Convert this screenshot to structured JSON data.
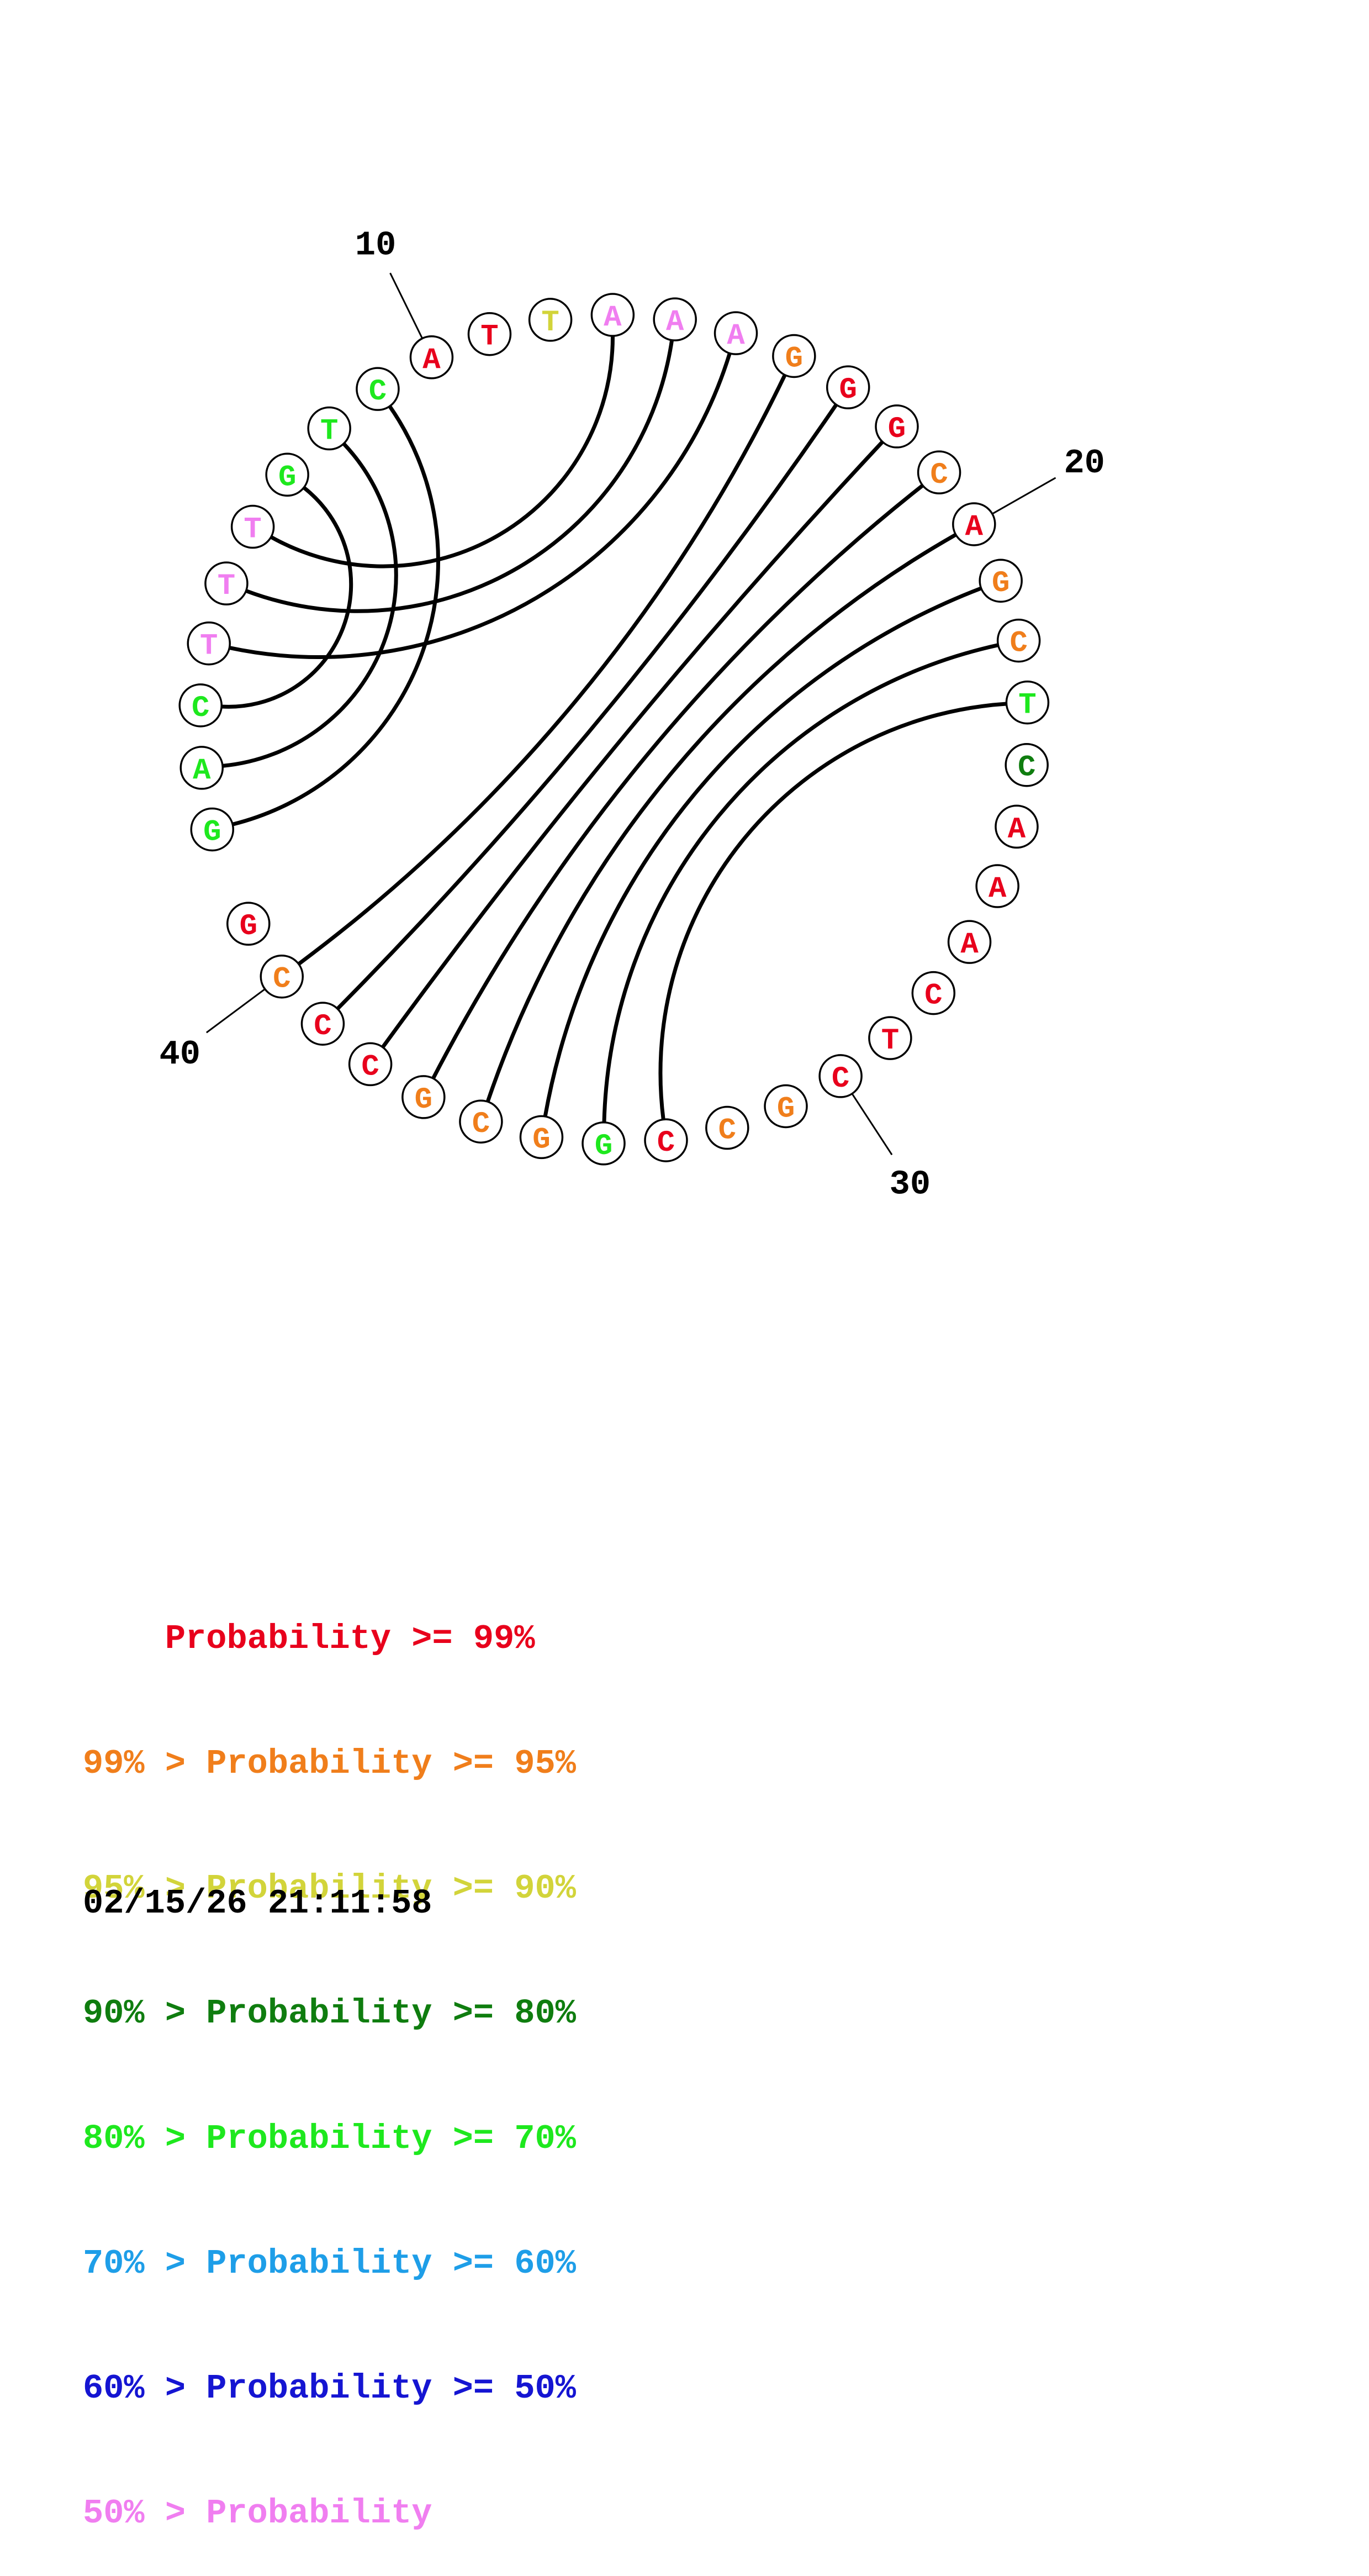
{
  "diagram": {
    "sequence": [
      {
        "nt": "G",
        "prob": "80"
      },
      {
        "nt": "A",
        "prob": "80"
      },
      {
        "nt": "C",
        "prob": "80"
      },
      {
        "nt": "T",
        "prob": "50"
      },
      {
        "nt": "T",
        "prob": "50"
      },
      {
        "nt": "T",
        "prob": "50"
      },
      {
        "nt": "G",
        "prob": "80"
      },
      {
        "nt": "T",
        "prob": "80"
      },
      {
        "nt": "C",
        "prob": "80"
      },
      {
        "nt": "A",
        "prob": "99"
      },
      {
        "nt": "T",
        "prob": "99"
      },
      {
        "nt": "T",
        "prob": "95"
      },
      {
        "nt": "A",
        "prob": "50"
      },
      {
        "nt": "A",
        "prob": "50"
      },
      {
        "nt": "A",
        "prob": "50"
      },
      {
        "nt": "G",
        "prob": "99-95"
      },
      {
        "nt": "G",
        "prob": "99"
      },
      {
        "nt": "G",
        "prob": "99"
      },
      {
        "nt": "C",
        "prob": "99-95"
      },
      {
        "nt": "A",
        "prob": "99"
      },
      {
        "nt": "G",
        "prob": "99-95"
      },
      {
        "nt": "C",
        "prob": "99-95"
      },
      {
        "nt": "T",
        "prob": "80"
      },
      {
        "nt": "C",
        "prob": "90"
      },
      {
        "nt": "A",
        "prob": "99"
      },
      {
        "nt": "A",
        "prob": "99"
      },
      {
        "nt": "A",
        "prob": "99"
      },
      {
        "nt": "C",
        "prob": "99"
      },
      {
        "nt": "T",
        "prob": "99"
      },
      {
        "nt": "C",
        "prob": "99"
      },
      {
        "nt": "G",
        "prob": "99-95"
      },
      {
        "nt": "C",
        "prob": "99-95"
      },
      {
        "nt": "C",
        "prob": "99"
      },
      {
        "nt": "G",
        "prob": "80"
      },
      {
        "nt": "G",
        "prob": "99-95"
      },
      {
        "nt": "C",
        "prob": "99-95"
      },
      {
        "nt": "G",
        "prob": "99-95"
      },
      {
        "nt": "C",
        "prob": "99"
      },
      {
        "nt": "C",
        "prob": "99"
      },
      {
        "nt": "C",
        "prob": "99-95"
      },
      {
        "nt": "G",
        "prob": "99"
      }
    ],
    "pairs": [
      [
        1,
        9
      ],
      [
        2,
        8
      ],
      [
        3,
        7
      ],
      [
        4,
        15
      ],
      [
        5,
        14
      ],
      [
        6,
        13
      ],
      [
        16,
        40
      ],
      [
        17,
        39
      ],
      [
        18,
        38
      ],
      [
        19,
        37
      ],
      [
        20,
        36
      ],
      [
        21,
        35
      ],
      [
        22,
        34
      ],
      [
        23,
        33
      ]
    ],
    "position_labels": [
      {
        "index": 10,
        "text": "10"
      },
      {
        "index": 20,
        "text": "20"
      },
      {
        "index": 30,
        "text": "30"
      },
      {
        "index": 40,
        "text": "40"
      }
    ]
  },
  "colors": {
    "99": "#e8001c",
    "99-95": "#f07e1b",
    "95": "#d2d43a",
    "90": "#0f7d0f",
    "80": "#1ee81e",
    "70": "#1e9ee8",
    "60": "#1515d2",
    "50": "#f07ef0"
  },
  "legend": [
    {
      "text": "    Probability >= 99%",
      "color": "#e8001c"
    },
    {
      "text": "99% > Probability >= 95%",
      "color": "#f07e1b"
    },
    {
      "text": "95% > Probability >= 90%",
      "color": "#d2d43a"
    },
    {
      "text": "90% > Probability >= 80%",
      "color": "#0f7d0f"
    },
    {
      "text": "80% > Probability >= 70%",
      "color": "#1ee81e"
    },
    {
      "text": "70% > Probability >= 60%",
      "color": "#1e9ee8"
    },
    {
      "text": "60% > Probability >= 50%",
      "color": "#1515d2"
    },
    {
      "text": "50% > Probability",
      "color": "#f07ef0"
    }
  ],
  "timestamp": "02/15/26 21:11:58"
}
